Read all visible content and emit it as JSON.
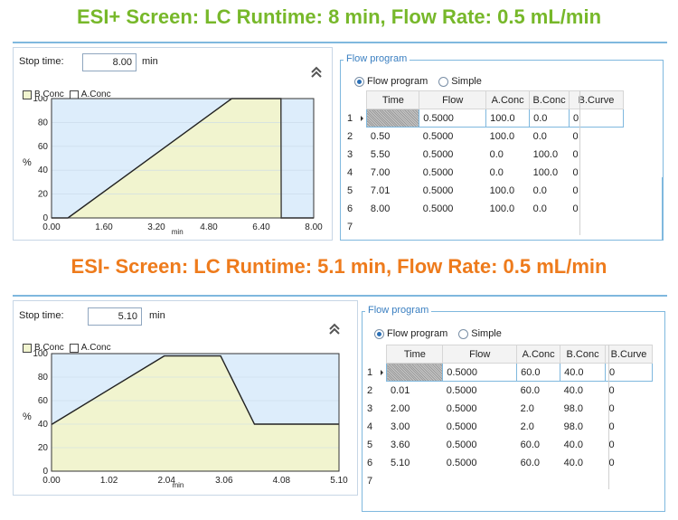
{
  "colors": {
    "esi_pos_heading": "#77b82a",
    "esi_neg_heading": "#ee7b1c",
    "b_fill": "#f1f4cf",
    "a_fill": "#ddedfb",
    "accent": "#3a7fc1"
  },
  "esi_pos": {
    "heading": "ESI+ Screen: LC Runtime: 8 min,  Flow Rate: 0.5 mL/min",
    "stop_time_label": "Stop time:",
    "stop_time_value": "8.00",
    "stop_time_unit": "min",
    "legend_b": "B.Conc",
    "legend_a": "A.Conc",
    "flow_title": "Flow program",
    "radio_flow": "Flow program",
    "radio_simple": "Simple",
    "columns": [
      "Time",
      "Flow",
      "A.Conc",
      "B.Conc",
      "B.Curve"
    ],
    "rows": [
      {
        "n": "1",
        "time": "",
        "flow": "0.5000",
        "a": "100.0",
        "b": "0.0",
        "curve": "0"
      },
      {
        "n": "2",
        "time": "0.50",
        "flow": "0.5000",
        "a": "100.0",
        "b": "0.0",
        "curve": "0"
      },
      {
        "n": "3",
        "time": "5.50",
        "flow": "0.5000",
        "a": "0.0",
        "b": "100.0",
        "curve": "0"
      },
      {
        "n": "4",
        "time": "7.00",
        "flow": "0.5000",
        "a": "0.0",
        "b": "100.0",
        "curve": "0"
      },
      {
        "n": "5",
        "time": "7.01",
        "flow": "0.5000",
        "a": "100.0",
        "b": "0.0",
        "curve": "0"
      },
      {
        "n": "6",
        "time": "8.00",
        "flow": "0.5000",
        "a": "100.0",
        "b": "0.0",
        "curve": "0"
      },
      {
        "n": "7",
        "time": "",
        "flow": "",
        "a": "",
        "b": "",
        "curve": ""
      }
    ]
  },
  "esi_neg": {
    "heading": "ESI- Screen: LC Runtime: 5.1 min, Flow Rate: 0.5 mL/min",
    "stop_time_label": "Stop time:",
    "stop_time_value": "5.10",
    "stop_time_unit": "min",
    "legend_b": "B.Conc",
    "legend_a": "A.Conc",
    "flow_title": "Flow program",
    "radio_flow": "Flow program",
    "radio_simple": "Simple",
    "columns": [
      "Time",
      "Flow",
      "A.Conc",
      "B.Conc",
      "B.Curve"
    ],
    "rows": [
      {
        "n": "1",
        "time": "",
        "flow": "0.5000",
        "a": "60.0",
        "b": "40.0",
        "curve": "0"
      },
      {
        "n": "2",
        "time": "0.01",
        "flow": "0.5000",
        "a": "60.0",
        "b": "40.0",
        "curve": "0"
      },
      {
        "n": "3",
        "time": "2.00",
        "flow": "0.5000",
        "a": "2.0",
        "b": "98.0",
        "curve": "0"
      },
      {
        "n": "4",
        "time": "3.00",
        "flow": "0.5000",
        "a": "2.0",
        "b": "98.0",
        "curve": "0"
      },
      {
        "n": "5",
        "time": "3.60",
        "flow": "0.5000",
        "a": "60.0",
        "b": "40.0",
        "curve": "0"
      },
      {
        "n": "6",
        "time": "5.10",
        "flow": "0.5000",
        "a": "60.0",
        "b": "40.0",
        "curve": "0"
      },
      {
        "n": "7",
        "time": "",
        "flow": "",
        "a": "",
        "b": "",
        "curve": ""
      }
    ]
  },
  "chart_data": [
    {
      "type": "area",
      "ylabel": "%",
      "xlabel": "min",
      "xlim": [
        0,
        8
      ],
      "ylim": [
        0,
        100
      ],
      "x_ticks": [
        "0.00",
        "1.60",
        "3.20",
        "4.80",
        "6.40",
        "8.00"
      ],
      "y_ticks": [
        "0",
        "20",
        "40",
        "60",
        "80",
        "100"
      ],
      "series": [
        {
          "name": "B.Conc",
          "x": [
            0,
            0.5,
            5.5,
            7.0,
            7.01,
            8.0
          ],
          "y": [
            0,
            0,
            100,
            100,
            0,
            0
          ]
        }
      ]
    },
    {
      "type": "area",
      "ylabel": "%",
      "xlabel": "min",
      "xlim": [
        0,
        5.1
      ],
      "ylim": [
        0,
        100
      ],
      "x_ticks": [
        "0.00",
        "1.02",
        "2.04",
        "3.06",
        "4.08",
        "5.10"
      ],
      "y_ticks": [
        "0",
        "20",
        "40",
        "60",
        "80",
        "100"
      ],
      "series": [
        {
          "name": "B.Conc",
          "x": [
            0,
            0.01,
            2.0,
            3.0,
            3.6,
            5.1
          ],
          "y": [
            40,
            40,
            98,
            98,
            40,
            40
          ]
        }
      ]
    }
  ]
}
